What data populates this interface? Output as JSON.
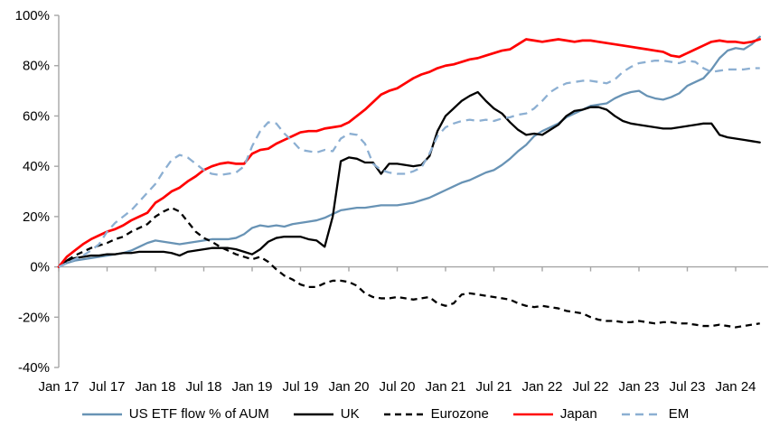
{
  "chart_data": {
    "type": "line",
    "x_unit": "month",
    "x_start": "2017-01",
    "x_end": "2024-04",
    "ylim": [
      -40,
      100
    ],
    "y_format": "percent",
    "grid": false,
    "legend_position": "bottom",
    "axis_color": "#A6A6A6",
    "y_tick_labels": [
      "100%",
      "80%",
      "60%",
      "40%",
      "20%",
      "0%",
      "-20%",
      "-40%"
    ],
    "x_tick_labels": [
      "Jan 17",
      "Jul 17",
      "Jan 18",
      "Jul 18",
      "Jan 19",
      "Jul 19",
      "Jan 20",
      "Jul 20",
      "Jan 21",
      "Jul 21",
      "Jan 22",
      "Jul 22",
      "Jan 23",
      "Jul 23",
      "Jan 24"
    ],
    "series": [
      {
        "name": "US ETF flow % of AUM",
        "color": "#6893B5",
        "style": "solid",
        "values": [
          0,
          1.5,
          2.5,
          3,
          3.5,
          4,
          4.5,
          5,
          5.5,
          6.5,
          8,
          9.5,
          10.5,
          10,
          9.5,
          9,
          9.5,
          10,
          10.5,
          11,
          11,
          11,
          11.5,
          13,
          15.5,
          16.5,
          16,
          16.5,
          16,
          17,
          17.5,
          18,
          18.5,
          19.5,
          21,
          22.5,
          23,
          23.5,
          23.5,
          24,
          24.5,
          24.5,
          24.5,
          25,
          25.5,
          26.5,
          27.5,
          29,
          30.5,
          32,
          33.5,
          34.5,
          36,
          37.5,
          38.5,
          40.5,
          43,
          46,
          48.5,
          52,
          54,
          55.5,
          57,
          59.5,
          61,
          62.5,
          64,
          64.5,
          65,
          67,
          68.5,
          69.5,
          70,
          68,
          67,
          66.5,
          67.5,
          69,
          72,
          73.5,
          75,
          78.5,
          83,
          86,
          87,
          86.5,
          88.5,
          91.5
        ]
      },
      {
        "name": "UK",
        "color": "#000000",
        "style": "solid",
        "values": [
          0,
          2.5,
          3.5,
          4,
          4.5,
          4.5,
          5,
          5,
          5.5,
          5.5,
          6,
          6,
          6,
          6,
          5.5,
          4.5,
          6,
          6.5,
          7,
          7.5,
          7.5,
          7.5,
          7,
          6,
          5,
          7,
          10,
          11.5,
          12,
          12,
          12,
          11,
          10.5,
          8,
          20,
          42,
          43.5,
          43,
          41.5,
          41.5,
          37,
          41,
          41,
          40.5,
          40,
          40.5,
          44,
          54,
          60,
          63,
          66,
          68,
          69.5,
          66,
          63,
          61,
          57.5,
          54.5,
          52.5,
          53,
          52.5,
          54.5,
          56.5,
          60,
          62,
          62.5,
          63.5,
          63.5,
          62.5,
          60,
          58,
          57,
          56.5,
          56,
          55.5,
          55,
          55,
          55.5,
          56,
          56.5,
          57,
          57,
          52.5,
          51.5,
          51,
          50.5,
          50,
          49.5
        ]
      },
      {
        "name": "Eurozone",
        "color": "#000000",
        "style": "dashed",
        "values": [
          0,
          2.5,
          4.5,
          6,
          7.5,
          8.5,
          9.5,
          11,
          12,
          14,
          15.5,
          17,
          20,
          22,
          23.5,
          22,
          18,
          14,
          11.5,
          10,
          8,
          6.5,
          5,
          4,
          3,
          4,
          2,
          -1,
          -3.5,
          -5,
          -7,
          -8,
          -8,
          -6.5,
          -5.5,
          -5.5,
          -6,
          -7.5,
          -10.5,
          -12,
          -12.5,
          -12.5,
          -12,
          -12.5,
          -13,
          -12.5,
          -12,
          -14.5,
          -15.5,
          -14.5,
          -11,
          -10.5,
          -11,
          -11.5,
          -12,
          -12.5,
          -13,
          -14.5,
          -15.5,
          -16,
          -15.5,
          -16,
          -16.5,
          -17.5,
          -18,
          -18.5,
          -20,
          -21,
          -21.5,
          -21.5,
          -22,
          -22,
          -21.5,
          -22,
          -22.5,
          -22,
          -22,
          -22.5,
          -22.5,
          -23,
          -23.5,
          -23.5,
          -23,
          -23.5,
          -24,
          -23.5,
          -23,
          -22.5
        ]
      },
      {
        "name": "Japan",
        "color": "#FF0000",
        "style": "solid",
        "values": [
          0,
          4,
          6.5,
          9,
          11,
          12.5,
          14,
          15,
          16.5,
          18.5,
          20,
          21.5,
          25.5,
          27.5,
          30,
          31.5,
          34,
          36,
          38.5,
          40,
          41,
          41.5,
          41,
          41,
          45,
          46.5,
          47,
          49,
          50.5,
          52,
          53.5,
          54,
          54,
          55,
          55.5,
          56,
          57.5,
          60,
          62.5,
          65.5,
          68.5,
          70,
          71,
          73,
          75,
          76.5,
          77.5,
          79,
          80,
          80.5,
          81.5,
          82.5,
          83,
          84,
          85,
          86,
          86.5,
          88.5,
          90.5,
          90,
          89.5,
          90,
          90.5,
          90,
          89.5,
          90,
          90,
          89.5,
          89,
          88.5,
          88,
          87.5,
          87,
          86.5,
          86,
          85.5,
          84,
          83.5,
          85,
          86.5,
          88,
          89.5,
          90,
          89.5,
          89.5,
          89,
          89.5,
          90.5
        ]
      },
      {
        "name": "EM",
        "color": "#8CAFD2",
        "style": "dashed",
        "values": [
          0,
          1.5,
          3,
          4.5,
          6.5,
          9,
          14,
          17.5,
          20,
          22.5,
          26,
          29.5,
          33,
          38,
          42.5,
          44.5,
          43.5,
          41,
          38.5,
          37,
          36.5,
          37,
          37.5,
          40,
          48,
          54,
          57.5,
          57,
          53,
          50,
          46.5,
          46,
          45.5,
          46.5,
          46,
          51,
          53,
          52.5,
          49,
          41,
          38.5,
          37.5,
          37,
          37,
          38,
          39.5,
          45,
          52,
          55.5,
          57,
          58,
          58.5,
          58,
          58.5,
          58,
          59,
          59.5,
          60.5,
          61,
          63,
          66,
          69.5,
          71.5,
          73,
          73.5,
          74,
          74,
          73.5,
          73,
          74.5,
          77.5,
          79.5,
          81,
          81.5,
          82,
          82,
          81.5,
          81,
          82,
          81.5,
          79,
          77.5,
          78,
          78.5,
          78.5,
          78.5,
          79,
          79
        ]
      }
    ]
  }
}
